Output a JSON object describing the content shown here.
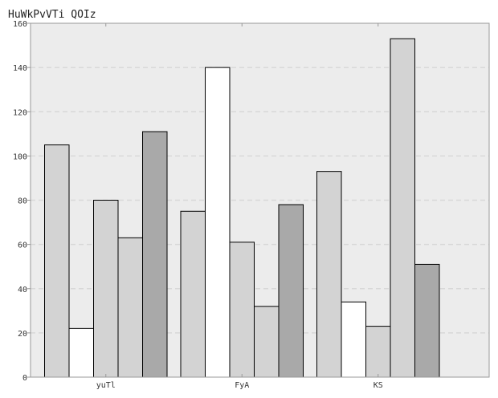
{
  "chart_data": {
    "type": "bar",
    "title": "HuWkPvVTi QOIz",
    "xlabel": "",
    "ylabel": "",
    "categories": [
      "yuTl",
      "FyA",
      "KS"
    ],
    "series": [
      {
        "values": [
          105,
          75,
          93
        ],
        "color": "#d3d3d3"
      },
      {
        "values": [
          22,
          140,
          34
        ],
        "color": "#ffffff"
      },
      {
        "values": [
          80,
          61,
          23
        ],
        "color": "#d3d3d3"
      },
      {
        "values": [
          63,
          32,
          153
        ],
        "color": "#d3d3d3"
      },
      {
        "values": [
          111,
          78,
          51
        ],
        "color": "#a9a9a9"
      }
    ],
    "ylim": [
      0,
      160
    ],
    "yticks": [
      0,
      20,
      40,
      60,
      80,
      100,
      120,
      140,
      160
    ],
    "grid": true,
    "plot_background": "#ececec"
  }
}
